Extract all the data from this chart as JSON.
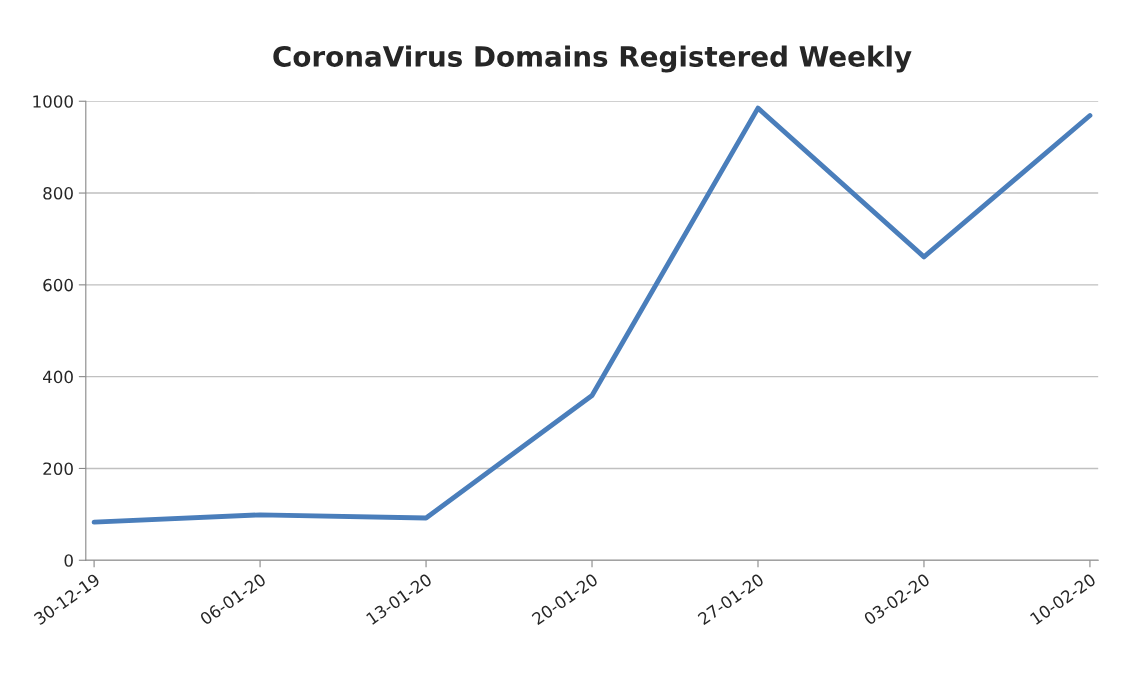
{
  "chart_data": {
    "type": "line",
    "title": "CoronaVirus Domains Registered Weekly",
    "categories": [
      "30-12-19",
      "06-01-20",
      "13-01-20",
      "20-01-20",
      "27-01-20",
      "03-02-20",
      "10-02-20"
    ],
    "series": [
      {
        "color": "#4a7ebb",
        "values": [
          83,
          99,
          92,
          359,
          985,
          661,
          969
        ]
      }
    ],
    "ylim": [
      0,
      1000
    ],
    "yticks": [
      0,
      200,
      400,
      600,
      800,
      1000
    ],
    "grid": "y",
    "legend": false,
    "marker": "none",
    "line_style": "solid"
  }
}
